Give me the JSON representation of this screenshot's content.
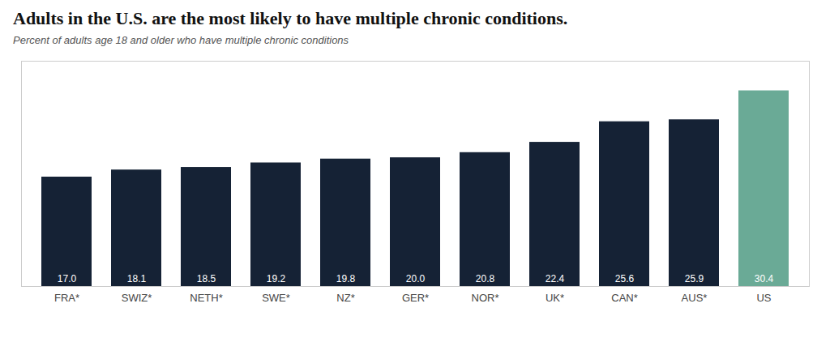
{
  "chart_data": {
    "type": "bar",
    "title": "Adults in the U.S. are the most likely to have multiple chronic conditions.",
    "subtitle": "Percent of adults age 18 and older who have multiple chronic conditions",
    "categories": [
      "FRA*",
      "SWIZ*",
      "NETH*",
      "SWE*",
      "NZ*",
      "GER*",
      "NOR*",
      "UK*",
      "CAN*",
      "AUS*",
      "US"
    ],
    "values": [
      17.0,
      18.1,
      18.5,
      19.2,
      19.8,
      20.0,
      20.8,
      22.4,
      25.6,
      25.9,
      30.4
    ],
    "value_labels": [
      "17.0",
      "18.1",
      "18.5",
      "19.2",
      "19.8",
      "20.0",
      "20.8",
      "22.4",
      "25.6",
      "25.9",
      "30.4"
    ],
    "colors": [
      "#152235",
      "#152235",
      "#152235",
      "#152235",
      "#152235",
      "#152235",
      "#152235",
      "#152235",
      "#152235",
      "#152235",
      "#6aaa96"
    ],
    "ylim": [
      0,
      35
    ],
    "data_labels": true,
    "tick_labels": "x"
  }
}
